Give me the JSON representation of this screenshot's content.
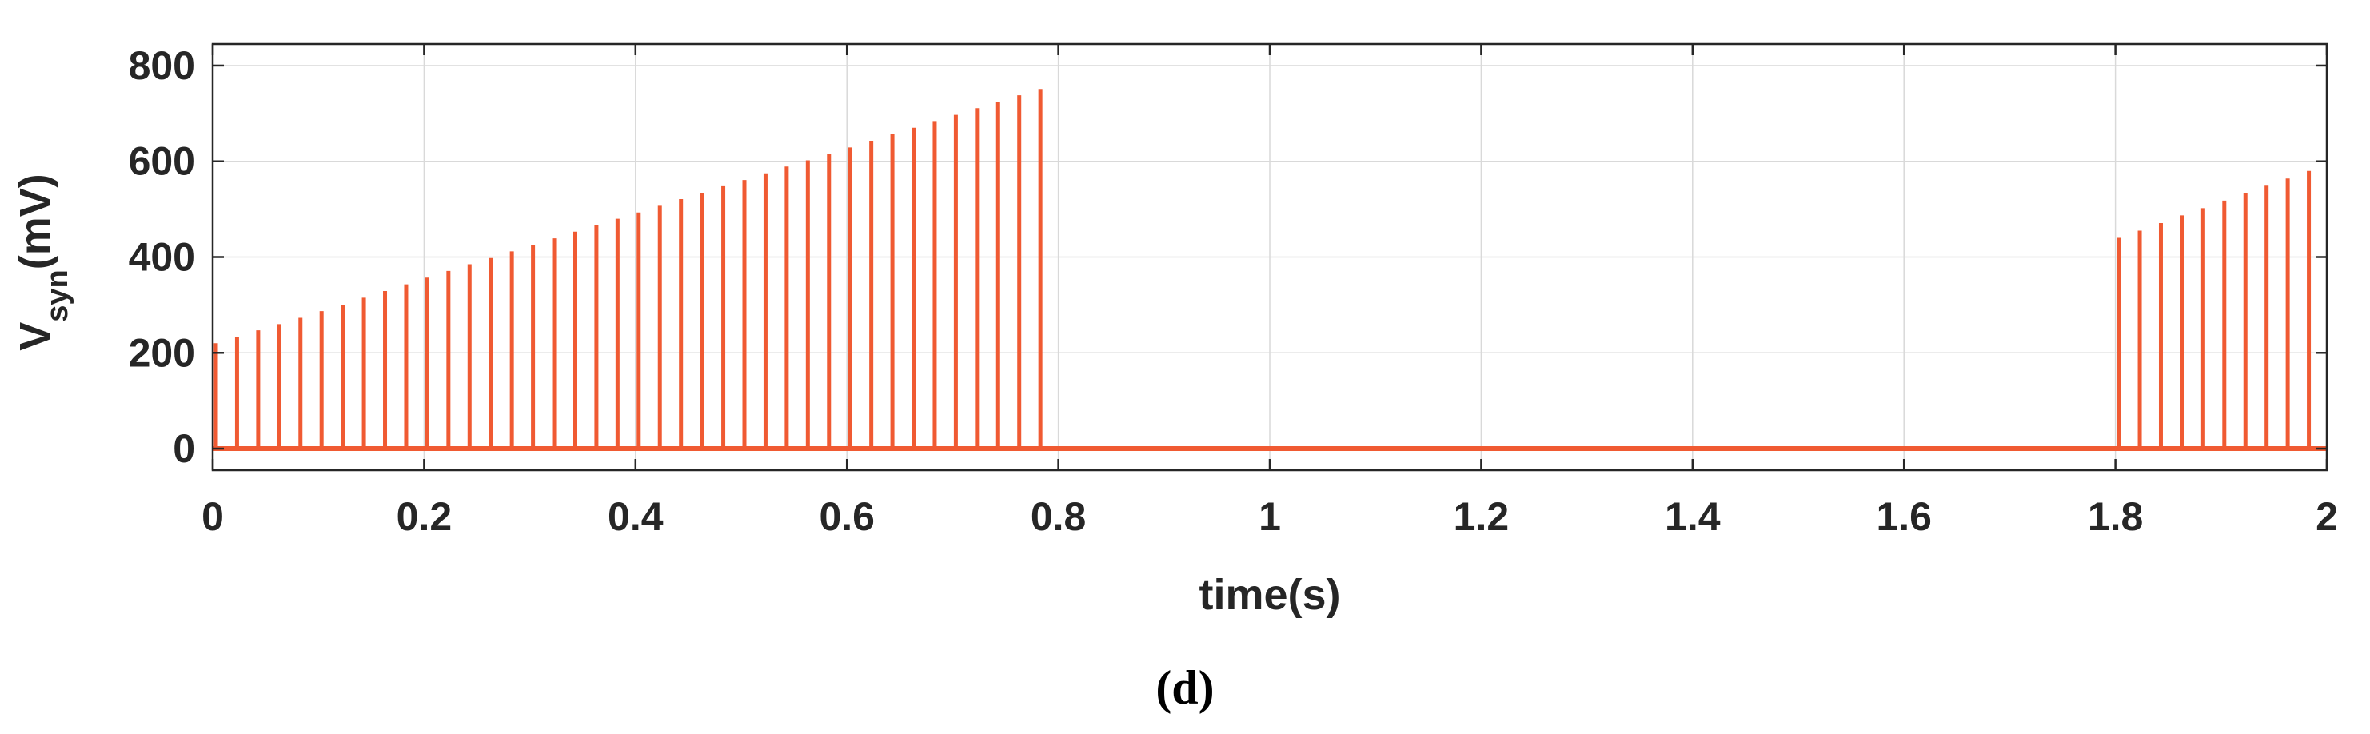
{
  "chart_data": {
    "type": "line",
    "xlabel": "time(s)",
    "ylabel": {
      "main": "V",
      "subscript": "syn",
      "suffix": "(mV)"
    },
    "panel_label": "(d)",
    "xlim": [
      0,
      2
    ],
    "ylim": [
      -45,
      845
    ],
    "x_ticks": [
      0,
      0.2,
      0.4,
      0.6,
      0.8,
      1,
      1.2,
      1.4,
      1.6,
      1.8,
      2
    ],
    "x_tick_labels": [
      "0",
      "0.2",
      "0.4",
      "0.6",
      "0.8",
      "1",
      "1.2",
      "1.4",
      "1.6",
      "1.8",
      "2"
    ],
    "y_ticks": [
      0,
      200,
      400,
      600,
      800
    ],
    "y_tick_labels": [
      "0",
      "200",
      "400",
      "600",
      "800"
    ],
    "grid": true,
    "series": [
      {
        "color": "#f05a32",
        "baseline": 0,
        "spikes": [
          {
            "t": 0.0,
            "v": 220
          },
          {
            "t": 0.02,
            "v": 233
          },
          {
            "t": 0.04,
            "v": 247
          },
          {
            "t": 0.06,
            "v": 260
          },
          {
            "t": 0.08,
            "v": 273
          },
          {
            "t": 0.1,
            "v": 287
          },
          {
            "t": 0.12,
            "v": 300
          },
          {
            "t": 0.14,
            "v": 315
          },
          {
            "t": 0.16,
            "v": 329
          },
          {
            "t": 0.18,
            "v": 343
          },
          {
            "t": 0.2,
            "v": 357
          },
          {
            "t": 0.22,
            "v": 371
          },
          {
            "t": 0.24,
            "v": 385
          },
          {
            "t": 0.26,
            "v": 398
          },
          {
            "t": 0.28,
            "v": 412
          },
          {
            "t": 0.3,
            "v": 425
          },
          {
            "t": 0.32,
            "v": 439
          },
          {
            "t": 0.34,
            "v": 453
          },
          {
            "t": 0.36,
            "v": 466
          },
          {
            "t": 0.38,
            "v": 480
          },
          {
            "t": 0.4,
            "v": 493
          },
          {
            "t": 0.42,
            "v": 507
          },
          {
            "t": 0.44,
            "v": 521
          },
          {
            "t": 0.46,
            "v": 534
          },
          {
            "t": 0.48,
            "v": 548
          },
          {
            "t": 0.5,
            "v": 561
          },
          {
            "t": 0.52,
            "v": 575
          },
          {
            "t": 0.54,
            "v": 589
          },
          {
            "t": 0.56,
            "v": 602
          },
          {
            "t": 0.58,
            "v": 616
          },
          {
            "t": 0.6,
            "v": 629
          },
          {
            "t": 0.62,
            "v": 643
          },
          {
            "t": 0.64,
            "v": 657
          },
          {
            "t": 0.66,
            "v": 670
          },
          {
            "t": 0.68,
            "v": 684
          },
          {
            "t": 0.7,
            "v": 697
          },
          {
            "t": 0.72,
            "v": 711
          },
          {
            "t": 0.74,
            "v": 724
          },
          {
            "t": 0.76,
            "v": 738
          },
          {
            "t": 0.78,
            "v": 751
          },
          {
            "t": 1.8,
            "v": 440
          },
          {
            "t": 1.82,
            "v": 455
          },
          {
            "t": 1.84,
            "v": 471
          },
          {
            "t": 1.86,
            "v": 487
          },
          {
            "t": 1.88,
            "v": 502
          },
          {
            "t": 1.9,
            "v": 518
          },
          {
            "t": 1.92,
            "v": 533
          },
          {
            "t": 1.94,
            "v": 549
          },
          {
            "t": 1.96,
            "v": 564
          },
          {
            "t": 1.98,
            "v": 580
          }
        ]
      }
    ]
  }
}
